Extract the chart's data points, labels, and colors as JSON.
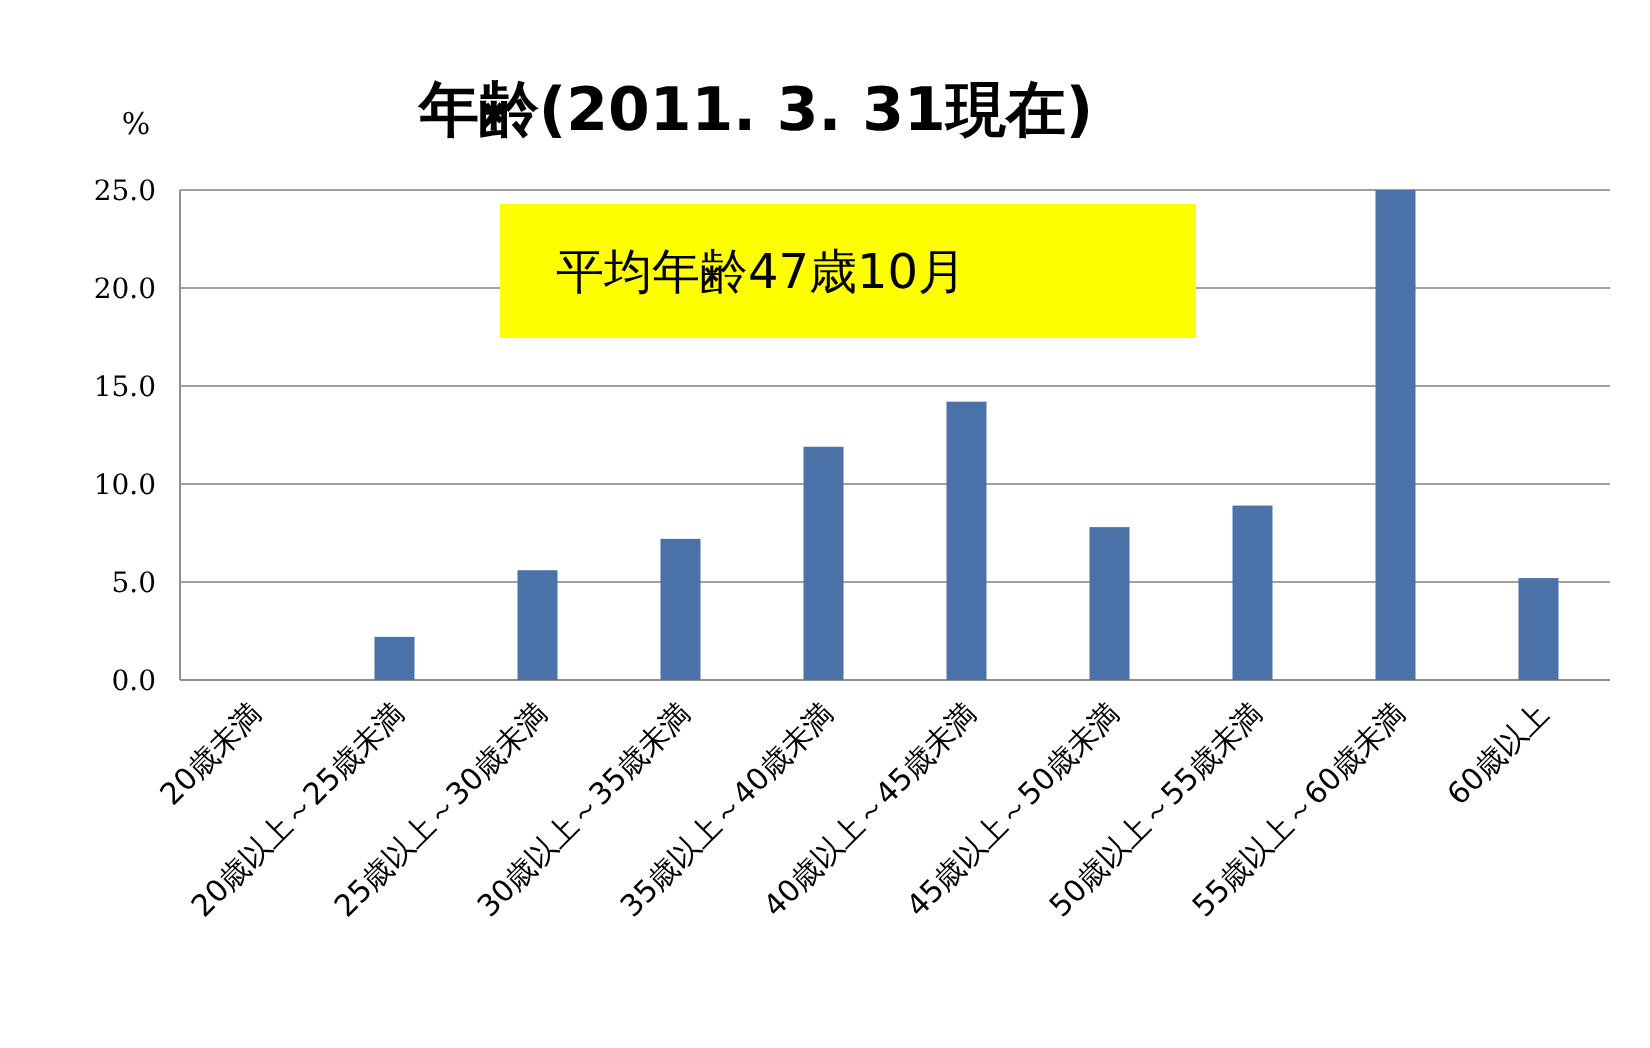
{
  "chart_data": {
    "type": "bar",
    "title": "年齢(2011. 3. 31現在)",
    "ylabel": "%",
    "categories": [
      "20歳未満",
      "20歳以上～25歳未満",
      "25歳以上～30歳未満",
      "30歳以上～35歳未満",
      "35歳以上～40歳未満",
      "40歳以上～45歳未満",
      "45歳以上～50歳未満",
      "50歳以上～55歳未満",
      "55歳以上～60歳未満",
      "60歳以上"
    ],
    "values": [
      0,
      2.2,
      5.6,
      7.2,
      11.9,
      14.2,
      7.8,
      8.9,
      25.0,
      5.2
    ],
    "color": "#4a72a8",
    "ylim": [
      0,
      25
    ],
    "yticks": [
      {
        "value": 0,
        "label": "0.0"
      },
      {
        "value": 5,
        "label": "5.0"
      },
      {
        "value": 10,
        "label": "10.0"
      },
      {
        "value": 15,
        "label": "15.0"
      },
      {
        "value": 20,
        "label": "20.0"
      },
      {
        "value": 25,
        "label": "25.0"
      }
    ],
    "grid": "y",
    "annotations": [
      "平均年齢47歳10月"
    ]
  }
}
